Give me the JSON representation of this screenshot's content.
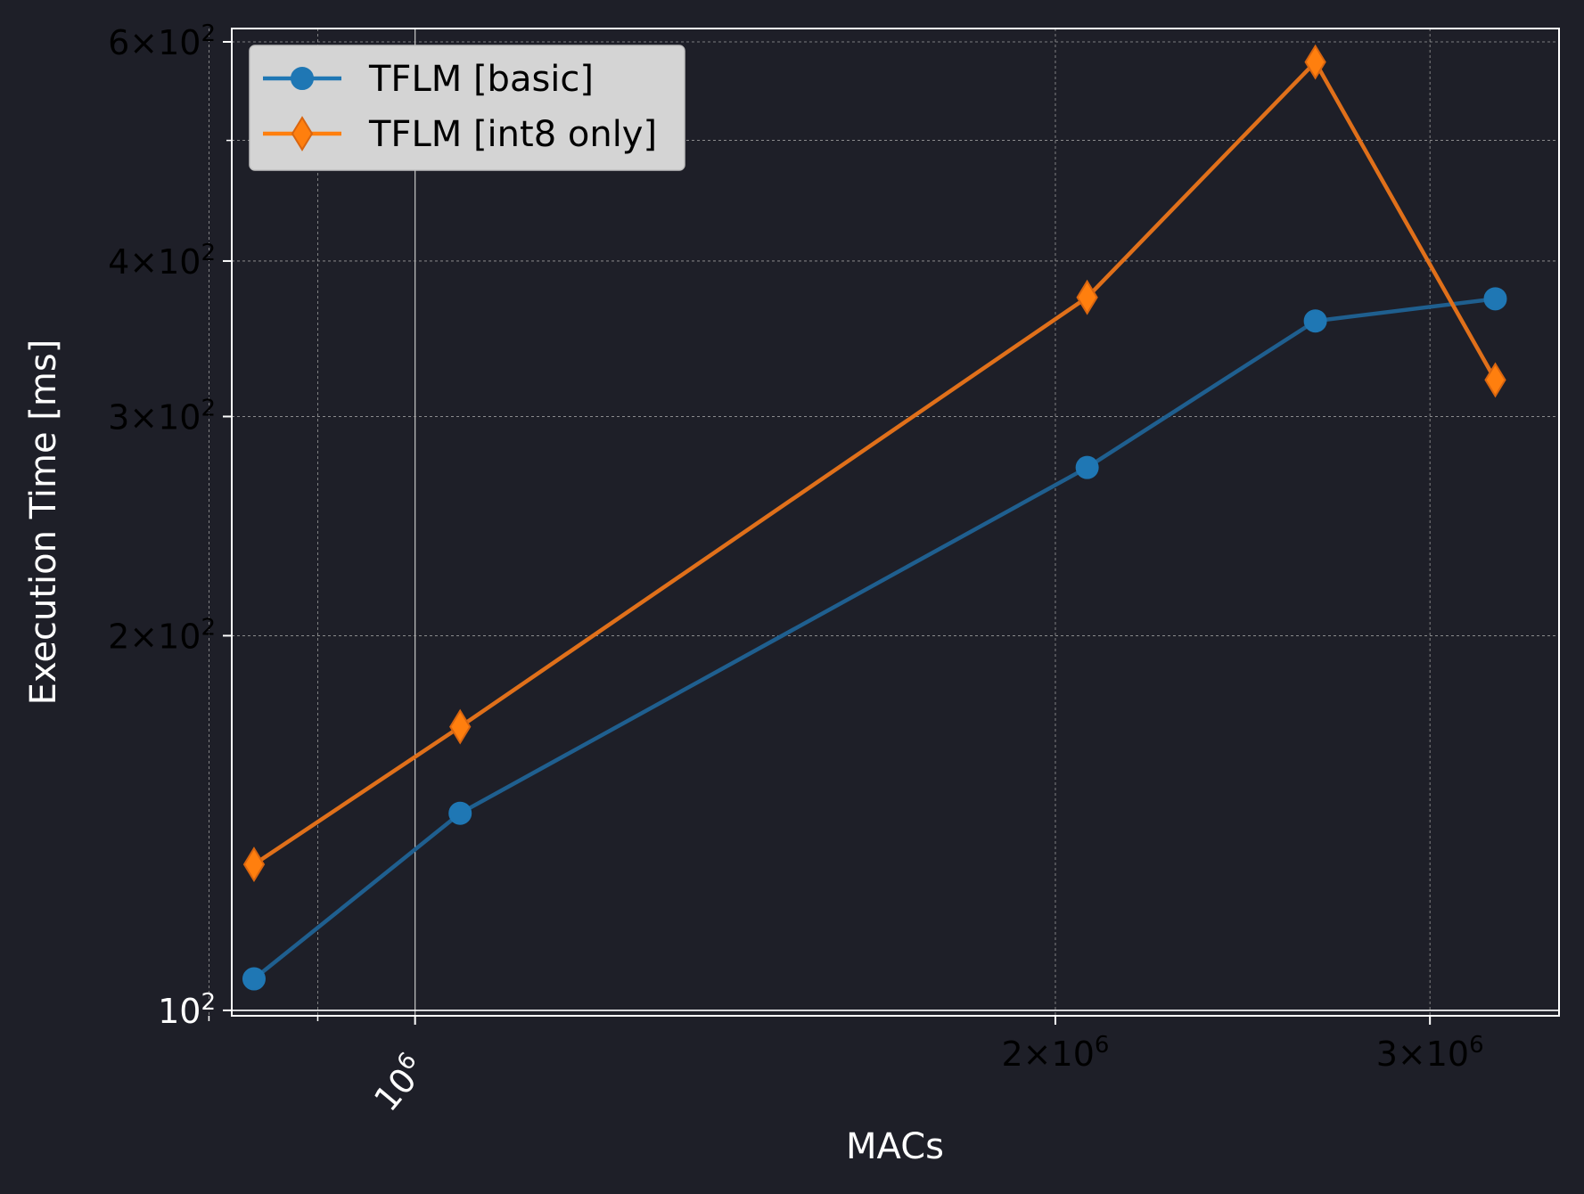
{
  "chart_data": {
    "type": "line",
    "scale": {
      "x": "log",
      "y": "log"
    },
    "xlabel": "MACs",
    "ylabel": "Execution Time [ms]",
    "xlim": [
      820000,
      3450000
    ],
    "ylim": [
      99,
      615
    ],
    "grid": true,
    "legend": "top-left",
    "x_ticks": [
      {
        "value": 1000000,
        "mantissa": "",
        "exp": "6"
      },
      {
        "value": 2000000,
        "mantissa": "2",
        "exp": "6"
      },
      {
        "value": 3000000,
        "mantissa": "3",
        "exp": "6"
      }
    ],
    "y_ticks": [
      {
        "value": 100,
        "mantissa": "",
        "exp": "2"
      },
      {
        "value": 200,
        "mantissa": "2",
        "exp": "2"
      },
      {
        "value": 300,
        "mantissa": "3",
        "exp": "2"
      },
      {
        "value": 400,
        "mantissa": "4",
        "exp": "2"
      },
      {
        "value": 600,
        "mantissa": "6",
        "exp": "2"
      }
    ],
    "x_minor_ticks": [
      800000,
      900000
    ],
    "y_minor_ticks": [
      500
    ],
    "series": [
      {
        "name": "TFLM [basic]",
        "marker": "circle",
        "color": "#1f77b4",
        "x": [
          840000,
          1050000,
          2070000,
          2650000,
          3220000
        ],
        "y": [
          106,
          144,
          273,
          358,
          373
        ]
      },
      {
        "name": "TFLM [int8 only]",
        "marker": "diamond",
        "color": "#ff7f0e",
        "x": [
          840000,
          1050000,
          2070000,
          2650000,
          3220000
        ],
        "y": [
          131,
          169,
          374,
          578,
          321
        ]
      }
    ]
  }
}
